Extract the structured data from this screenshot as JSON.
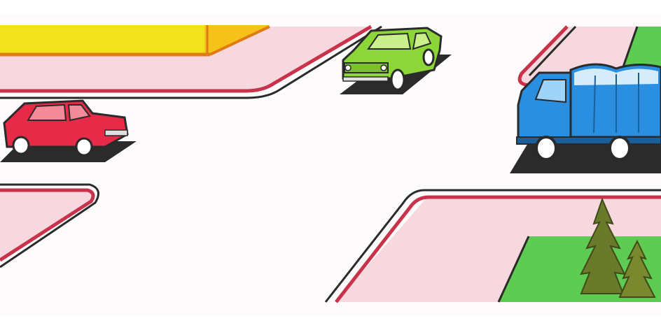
{
  "scene": {
    "elements": [
      "yellow-building",
      "green-car",
      "red-car",
      "blue-truck",
      "green-lawn",
      "fir-trees"
    ]
  },
  "colors": {
    "road": "#fdfbfb",
    "sidewalk": "#f6d8de",
    "curb_red": "#c8324a",
    "curb_dark": "#2a2a2a",
    "building_yellow": "#f2e21c",
    "building_orange": "#e07b14",
    "green_car": "#8cd63a",
    "red_car": "#e62a48",
    "truck_blue": "#2a8fe0",
    "lawn": "#5ecb52",
    "shadow": "#2b2b2b",
    "tree": "#6a7a2a"
  }
}
